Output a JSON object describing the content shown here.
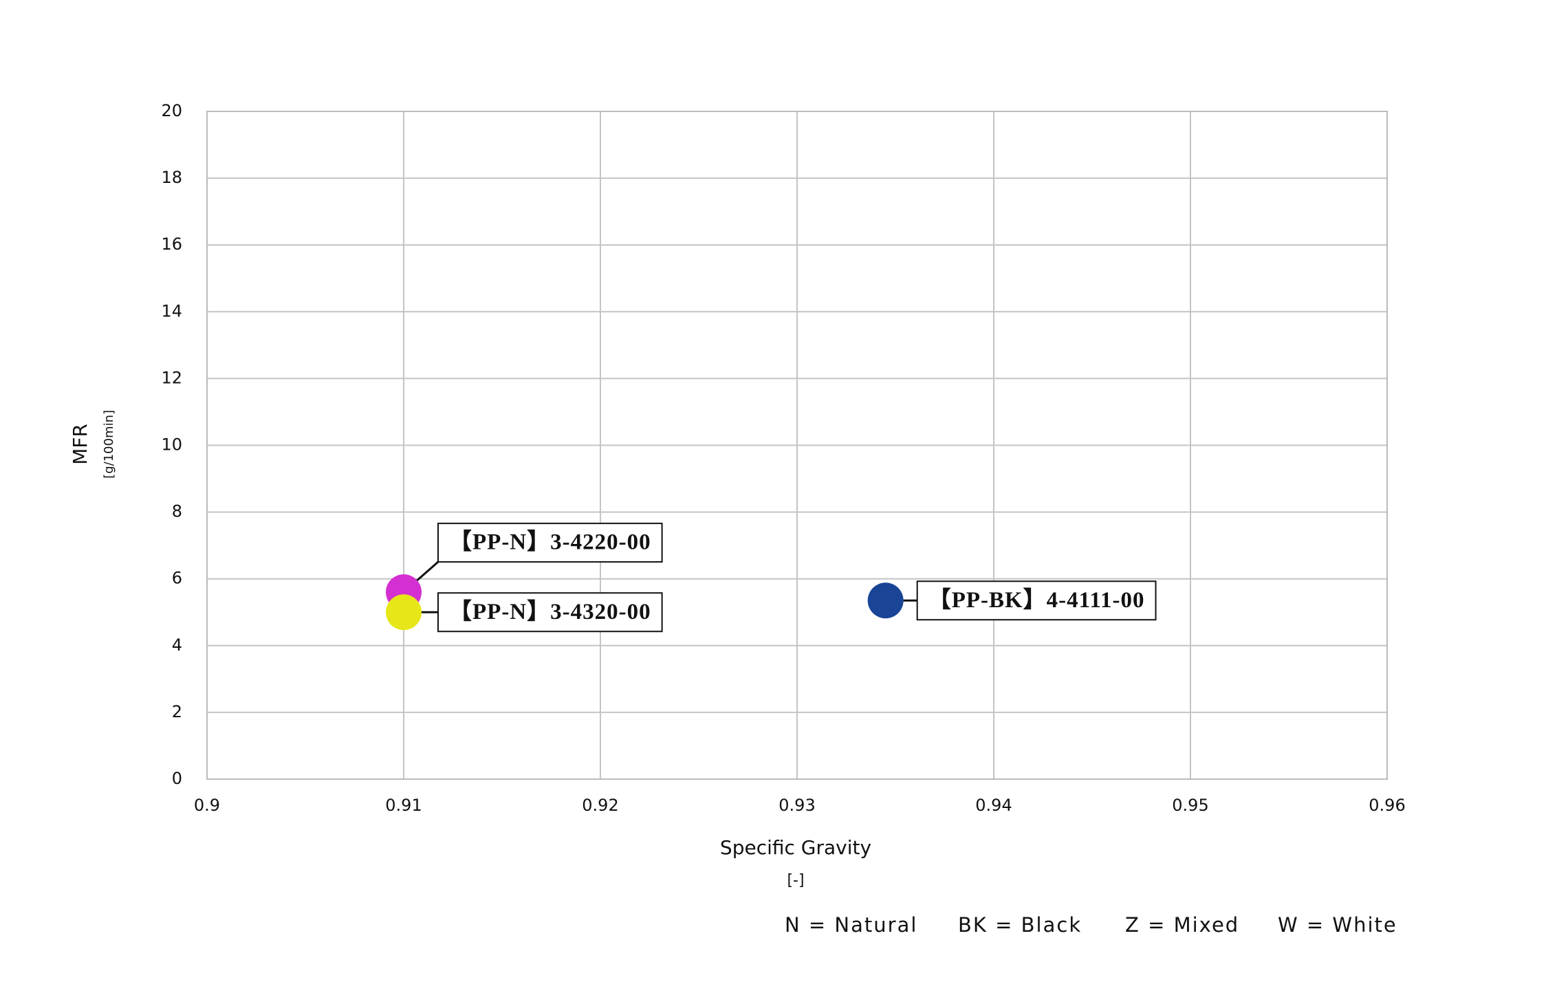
{
  "chart_data": {
    "type": "scatter",
    "x_label": "Specific Gravity",
    "x_unit": "[-]",
    "y_label": "MFR",
    "y_unit": "[g/100min]",
    "series": [
      {
        "name": "【PP-N】3-4220-00",
        "color": "#d42fd0",
        "x": [
          0.91
        ],
        "values": [
          5.6
        ]
      },
      {
        "name": "【PP-N】3-4320-00",
        "color": "#e6e619",
        "x": [
          0.91
        ],
        "values": [
          5.0
        ]
      },
      {
        "name": "【PP-BK】4-4111-00",
        "color": "#1a4496",
        "x": [
          0.9345
        ],
        "values": [
          5.35
        ]
      }
    ],
    "xlim": [
      0.9,
      0.96
    ],
    "xticks": [
      0.9,
      0.91,
      0.92,
      0.93,
      0.94,
      0.95,
      0.96
    ],
    "ylim": [
      0,
      20
    ],
    "yticks": [
      0,
      2,
      4,
      6,
      8,
      10,
      12,
      14,
      16,
      18,
      20
    ],
    "grid": true,
    "notes": [
      "N = Natural",
      "BK = Black",
      "Z = Mixed",
      "W = White"
    ]
  }
}
